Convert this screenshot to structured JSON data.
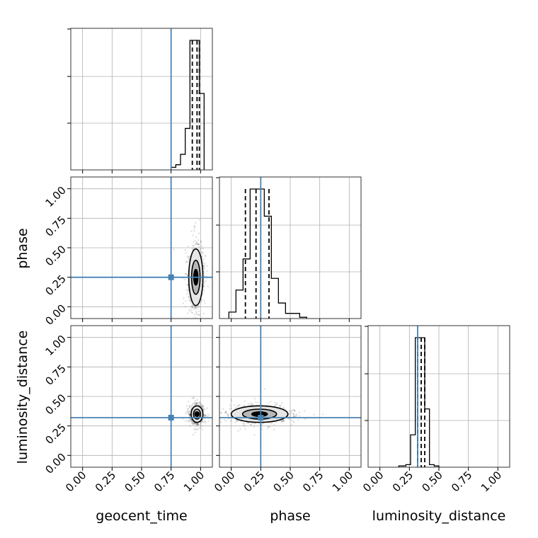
{
  "chart_data": {
    "type": "corner",
    "parameters": [
      "geocent_time",
      "phase",
      "luminosity_distance"
    ],
    "axis_range": [
      -0.1,
      1.1
    ],
    "tick_values": [
      0.0,
      0.25,
      0.5,
      0.75,
      1.0
    ],
    "tick_labels": [
      "0.00",
      "0.25",
      "0.50",
      "0.75",
      "1.00"
    ],
    "grid": true,
    "colors": {
      "truth": "#4682b4",
      "histogram": "#000000",
      "samples": "#000000"
    },
    "truths": {
      "geocent_time": 0.75,
      "phase": 0.25,
      "luminosity_distance": 0.32
    },
    "quantiles": {
      "geocent_time": [
        0.93,
        0.97,
        0.99
      ],
      "phase": [
        0.12,
        0.21,
        0.32
      ],
      "luminosity_distance": [
        0.32,
        0.35,
        0.38
      ]
    },
    "histograms": {
      "geocent_time": {
        "bin_edges": [
          0.75,
          0.79,
          0.83,
          0.87,
          0.91,
          0.95,
          0.99,
          1.03
        ],
        "counts": [
          0.02,
          0.04,
          0.12,
          0.32,
          1.0,
          1.0,
          0.59
        ]
      },
      "phase": {
        "bin_edges": [
          -0.02,
          0.04,
          0.1,
          0.16,
          0.22,
          0.28,
          0.34,
          0.4,
          0.46,
          0.52,
          0.58,
          0.64
        ],
        "counts": [
          0.05,
          0.22,
          0.46,
          1.0,
          1.0,
          0.79,
          0.31,
          0.12,
          0.04,
          0.04,
          0.01
        ]
      },
      "luminosity_distance": {
        "bin_edges": [
          0.16,
          0.22,
          0.26,
          0.3,
          0.34,
          0.38,
          0.42,
          0.46,
          0.5
        ],
        "counts": [
          0.01,
          0.02,
          0.25,
          1.0,
          1.0,
          0.45,
          0.02,
          0.01
        ]
      }
    },
    "scatter_clouds": {
      "phase_vs_geocent_time": {
        "center": [
          0.96,
          0.25
        ],
        "spread": [
          0.03,
          0.12
        ]
      },
      "luminosity_distance_vs_geocent_time": {
        "center": [
          0.97,
          0.35
        ],
        "spread": [
          0.025,
          0.035
        ]
      },
      "luminosity_distance_vs_phase": {
        "center": [
          0.24,
          0.35
        ],
        "spread": [
          0.12,
          0.035
        ]
      }
    }
  }
}
